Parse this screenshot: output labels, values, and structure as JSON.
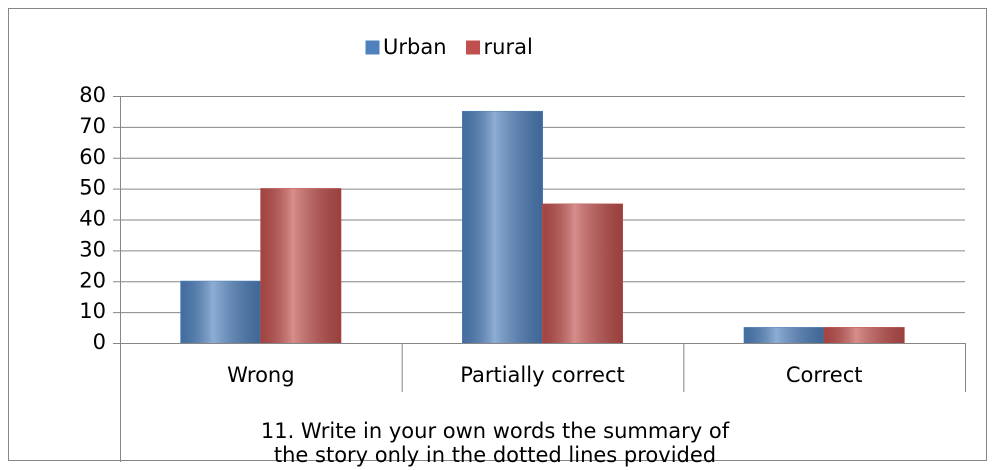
{
  "chart_data": {
    "type": "bar",
    "categories": [
      "Wrong",
      "Partially correct",
      "Correct"
    ],
    "series": [
      {
        "name": "Urban",
        "color": "#4f81bd",
        "values": [
          20,
          75,
          5
        ]
      },
      {
        "name": "rural",
        "color": "#c0504d",
        "values": [
          50,
          45,
          5
        ]
      }
    ],
    "x_label": [
      "11. Write in your own words the summary of",
      "the story only in the dotted lines provided"
    ],
    "ylim": [
      0,
      80
    ],
    "yticks": [
      0,
      10,
      20,
      30,
      40,
      50,
      60,
      70,
      80
    ],
    "grid": true,
    "legend": "top"
  }
}
